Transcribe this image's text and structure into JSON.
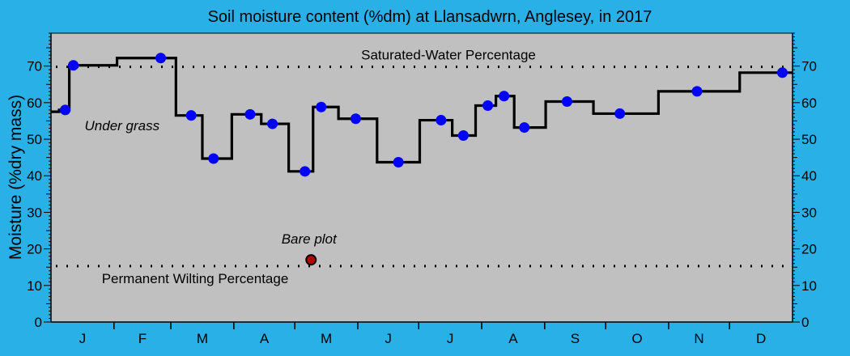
{
  "chart_data": {
    "type": "line",
    "title": "Soil moisture content (%dm)  at Llansadwrn, Anglesey, in 2017",
    "ylabel": "Moisture (%dry mass)",
    "xlabel": "",
    "xlim": [
      0,
      365
    ],
    "ylim": [
      0,
      79
    ],
    "y_ticks": [
      0,
      10,
      20,
      30,
      40,
      50,
      60,
      70
    ],
    "months": [
      {
        "label": "J",
        "day": 15.5
      },
      {
        "label": "F",
        "day": 45
      },
      {
        "label": "M",
        "day": 74.5
      },
      {
        "label": "A",
        "day": 105
      },
      {
        "label": "M",
        "day": 135.5
      },
      {
        "label": "J",
        "day": 166
      },
      {
        "label": "J",
        "day": 196.5
      },
      {
        "label": "A",
        "day": 227.5
      },
      {
        "label": "S",
        "day": 258
      },
      {
        "label": "O",
        "day": 288.5
      },
      {
        "label": "N",
        "day": 319
      },
      {
        "label": "D",
        "day": 349.5
      }
    ],
    "month_boundaries": [
      31,
      59,
      90,
      120,
      151,
      181,
      212,
      243,
      273,
      304,
      334
    ],
    "grid": false,
    "background": "#c0c0c0",
    "page_background": "#29b0e6",
    "series": [
      {
        "name": "Under grass",
        "color": "#0000ff",
        "step_color": "#000000",
        "points": [
          {
            "x": 7,
            "y": 58.0
          },
          {
            "x": 11,
            "y": 70.2
          },
          {
            "x": 54,
            "y": 72.2
          },
          {
            "x": 69,
            "y": 56.5
          },
          {
            "x": 80,
            "y": 44.7
          },
          {
            "x": 98,
            "y": 56.8
          },
          {
            "x": 109,
            "y": 54.2
          },
          {
            "x": 125,
            "y": 41.2
          },
          {
            "x": 133,
            "y": 58.8
          },
          {
            "x": 150,
            "y": 55.6
          },
          {
            "x": 171,
            "y": 43.7
          },
          {
            "x": 192,
            "y": 55.2
          },
          {
            "x": 203,
            "y": 51.0
          },
          {
            "x": 215,
            "y": 59.2
          },
          {
            "x": 223,
            "y": 61.8
          },
          {
            "x": 233,
            "y": 53.2
          },
          {
            "x": 254,
            "y": 60.3
          },
          {
            "x": 280,
            "y": 57.0
          },
          {
            "x": 318,
            "y": 63.1
          },
          {
            "x": 360,
            "y": 68.2
          }
        ],
        "step_start": {
          "x": 0,
          "y": 57.5
        },
        "step_end_x": 365
      },
      {
        "name": "Bare plot",
        "color": "#b00000",
        "points": [
          {
            "x": 128,
            "y": 17.0
          }
        ]
      }
    ],
    "reference_lines": [
      {
        "label": "Saturated-Water Percentage",
        "y": 69.8
      },
      {
        "label": "Permanent Wilting Percentage",
        "y": 15.3
      }
    ],
    "annotations": [
      {
        "text": "Under grass",
        "x": 35,
        "y": 52.5
      },
      {
        "text": "Bare plot",
        "x": 127,
        "y": 21.5
      }
    ]
  }
}
